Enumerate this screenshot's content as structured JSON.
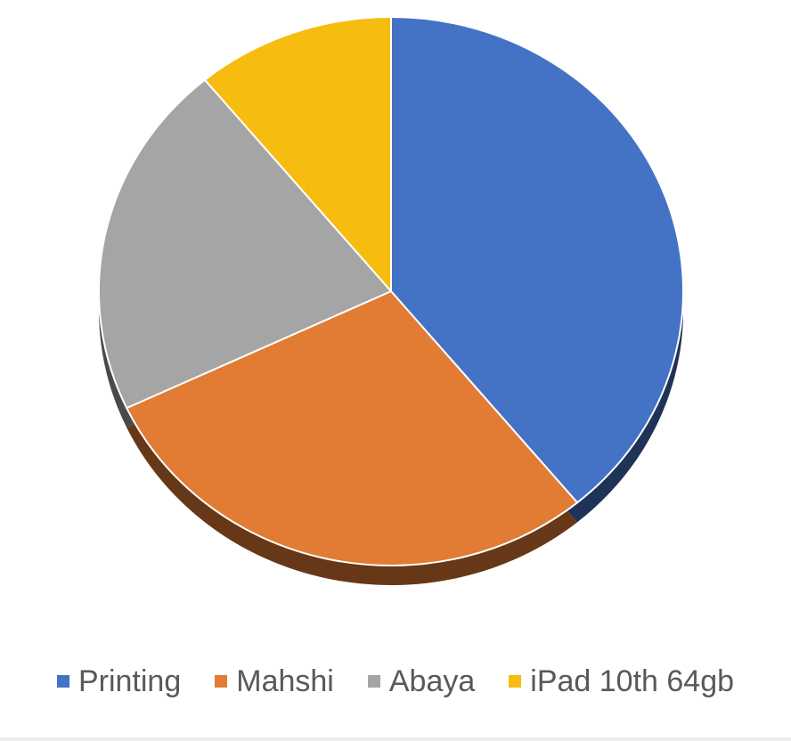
{
  "chart_data": {
    "type": "pie",
    "title": "",
    "categories": [
      "Printing",
      "Mahshi",
      "Abaya",
      "iPad 10th 64gb"
    ],
    "values": [
      39,
      29,
      21,
      11
    ],
    "colors": [
      "#4472C4",
      "#E27C34",
      "#A5A5A5",
      "#F6BC10"
    ],
    "start_angle_deg": 0,
    "direction": "clockwise",
    "legend_position": "bottom",
    "effect": "3d-tilt"
  }
}
